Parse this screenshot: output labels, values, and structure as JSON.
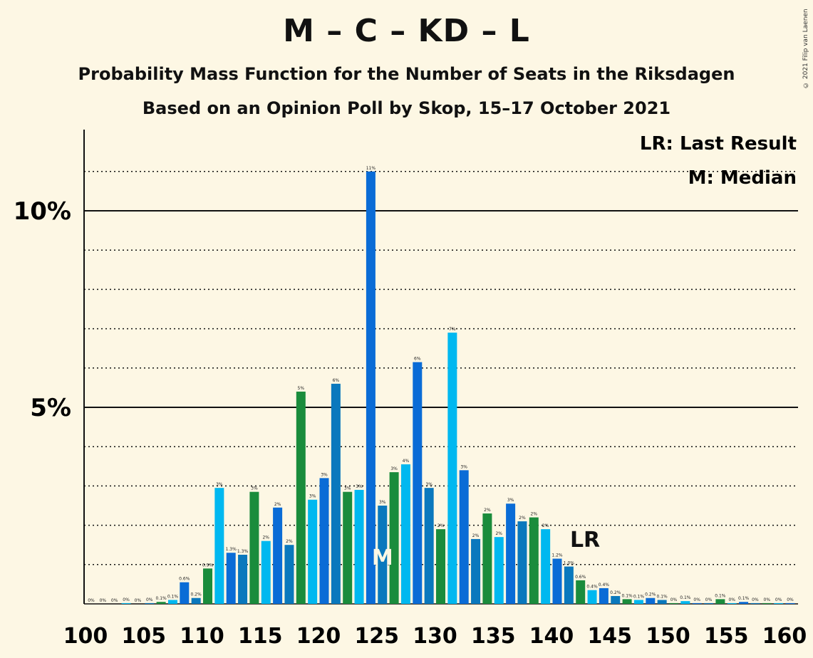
{
  "title": "M – C – KD – L",
  "subtitle": "Probability Mass Function for the Number of Seats in the Riksdagen",
  "subtitle2": "Based on an Opinion Poll by Skop, 15–17 October 2021",
  "copyright": "© 2021 Filip van Laenen",
  "legend": {
    "last_result": "LR: Last Result",
    "median": "M: Median"
  },
  "markers": {
    "last_result_label": "LR",
    "last_result_seat": 143,
    "median_label": "M",
    "median_seat": 125
  },
  "colors": {
    "background": "#fdf7e4",
    "cycle": [
      "#0a6cd6",
      "#0a78bd",
      "#1a8c3c",
      "#00b8f0"
    ]
  },
  "chart_data": {
    "type": "bar",
    "x": [
      100,
      101,
      102,
      103,
      104,
      105,
      106,
      107,
      108,
      109,
      110,
      111,
      112,
      113,
      114,
      115,
      116,
      117,
      118,
      119,
      120,
      121,
      122,
      123,
      124,
      125,
      126,
      127,
      128,
      129,
      130,
      131,
      132,
      133,
      134,
      135,
      136,
      137,
      138,
      139,
      140,
      141,
      142,
      143,
      144,
      145,
      146,
      147,
      148,
      149,
      150,
      151,
      152,
      153,
      154,
      155,
      156,
      157,
      158,
      159,
      160
    ],
    "values": [
      0,
      0,
      0,
      0.02,
      0,
      0.02,
      0.05,
      0.1,
      0.55,
      0.15,
      0.9,
      2.95,
      1.3,
      1.25,
      2.85,
      1.6,
      2.45,
      1.5,
      5.4,
      2.65,
      3.2,
      5.6,
      2.85,
      2.9,
      11.0,
      2.5,
      3.35,
      3.55,
      6.15,
      2.95,
      1.9,
      6.9,
      3.4,
      1.65,
      2.3,
      1.7,
      2.55,
      2.1,
      2.2,
      1.9,
      1.15,
      0.95,
      0.6,
      0.35,
      0.4,
      0.2,
      0.12,
      0.1,
      0.15,
      0.1,
      0.02,
      0.07,
      0.02,
      0.02,
      0.12,
      0.02,
      0.05,
      0.02,
      0.02,
      0.02,
      0.02
    ],
    "labels": [
      "0%",
      "0%",
      "0%",
      "0%",
      "0%",
      "0%",
      "0.1%",
      "0.1%",
      "0.6%",
      "0.2%",
      "0.9%",
      "3%",
      "1.3%",
      "1.3%",
      "3%",
      "2%",
      "2%",
      "2%",
      "5%",
      "3%",
      "3%",
      "6%",
      "3%",
      "3%",
      "11%",
      "3%",
      "3%",
      "4%",
      "6%",
      "3%",
      "2%",
      "7%",
      "3%",
      "2%",
      "2%",
      "2%",
      "3%",
      "2%",
      "2%",
      "2%",
      "1.2%",
      "1.0%",
      "0.6%",
      "0.4%",
      "0.4%",
      "0.2%",
      "0.1%",
      "0.1%",
      "0.2%",
      "0.1%",
      "0%",
      "0.1%",
      "0%",
      "0%",
      "0.1%",
      "0%",
      "0.1%",
      "0%",
      "0%",
      "0%",
      "0%"
    ],
    "xlim": [
      100,
      160
    ],
    "ylim": [
      0,
      12
    ],
    "x_ticks": [
      "100",
      "105",
      "110",
      "115",
      "120",
      "125",
      "130",
      "135",
      "140",
      "145",
      "150",
      "155",
      "160"
    ],
    "y_tick_labels": [
      "5%",
      "10%"
    ],
    "gridlines": "dotted every 1%, solid at 5% and 10%",
    "legend_position": "top-right"
  }
}
